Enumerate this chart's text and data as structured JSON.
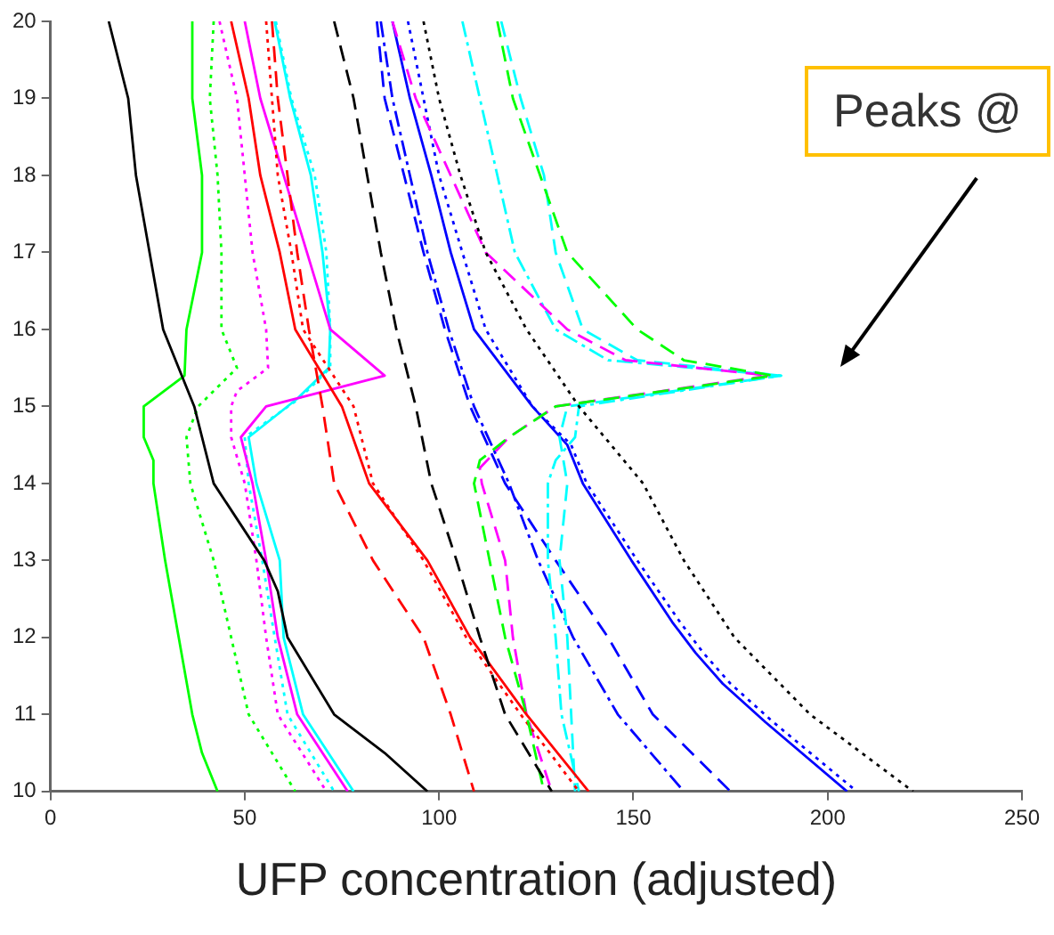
{
  "chart_data": {
    "type": "line",
    "xlabel": "UFP concentration (adjusted)",
    "xlim": [
      0,
      250
    ],
    "xticks": [
      0,
      50,
      100,
      150,
      200,
      250
    ],
    "ylim": [
      10,
      20
    ],
    "yticks": [
      10,
      11,
      12,
      13,
      14,
      15,
      16,
      17,
      18,
      19,
      20
    ],
    "grid": false,
    "marker": "none",
    "annotations": [
      "Peaks @"
    ],
    "series": [
      {
        "color": "#000000",
        "line_style": "solid",
        "x": [
          15,
          20,
          22,
          25.5,
          29,
          37,
          42,
          55,
          58.5,
          61,
          73,
          86,
          97
        ],
        "values": [
          20,
          19,
          18,
          17,
          16,
          15,
          14,
          13,
          12.6,
          12,
          11,
          10.5,
          10
        ]
      },
      {
        "color": "#000000",
        "line_style": "dashed",
        "x": [
          73,
          78,
          81.5,
          85,
          89,
          94,
          98,
          104.5,
          110.5,
          117,
          129
        ],
        "values": [
          20,
          19,
          18,
          17,
          16,
          15,
          14,
          13,
          12,
          11,
          10
        ]
      },
      {
        "color": "#000000",
        "line_style": "dotted",
        "x": [
          96,
          100,
          105.5,
          112,
          122.5,
          136,
          152.5,
          163,
          176,
          195.5,
          222
        ],
        "values": [
          20,
          19,
          18,
          17,
          16,
          15,
          14,
          13,
          12,
          11,
          10
        ]
      },
      {
        "color": "#00ff00",
        "line_style": "solid",
        "x": [
          36.5,
          36.5,
          39,
          39,
          35,
          34.5,
          24,
          24,
          26.5,
          26.5,
          29.5,
          33,
          36.5,
          39,
          43
        ],
        "values": [
          20,
          19,
          18,
          17,
          16,
          15.4,
          15,
          14.6,
          14.3,
          14,
          13,
          12,
          11,
          10.5,
          10
        ]
      },
      {
        "color": "#00ff00",
        "line_style": "dotted",
        "x": [
          42,
          41,
          43,
          44,
          44,
          48,
          38,
          35,
          36,
          42,
          46.5,
          51,
          63
        ],
        "values": [
          20,
          19,
          18,
          17,
          16,
          15.5,
          15,
          14.6,
          14,
          13,
          12,
          11,
          10
        ]
      },
      {
        "color": "#00ff00",
        "line_style": "dashed",
        "x": [
          115,
          119,
          126,
          133,
          151,
          163,
          186,
          130,
          118,
          110.5,
          109,
          113,
          117,
          122.5,
          127
        ],
        "values": [
          20,
          19,
          18,
          17,
          16,
          15.6,
          15.4,
          15,
          14.6,
          14.3,
          14,
          13,
          12,
          11,
          10
        ]
      },
      {
        "color": "#ff0000",
        "line_style": "solid",
        "x": [
          46.5,
          51,
          54,
          59,
          63,
          75,
          82,
          97,
          108,
          122.5,
          138.5
        ],
        "values": [
          20,
          19,
          18,
          17,
          16,
          15,
          14,
          13,
          12,
          11,
          10
        ]
      },
      {
        "color": "#ff0000",
        "line_style": "dashed",
        "x": [
          57,
          58.5,
          61,
          63.5,
          66.5,
          70,
          73,
          83,
          96,
          103,
          109
        ],
        "values": [
          20,
          19,
          18,
          17,
          16,
          15,
          14,
          13,
          12,
          11,
          10
        ]
      },
      {
        "color": "#ff0000",
        "line_style": "dotted",
        "x": [
          55.5,
          57,
          58.5,
          62,
          65,
          78,
          83,
          96,
          107,
          121,
          136
        ],
        "values": [
          20,
          19,
          18,
          17,
          16,
          15,
          14,
          13,
          12,
          11,
          10
        ]
      },
      {
        "color": "#ff00ff",
        "line_style": "solid",
        "x": [
          50,
          54,
          60,
          66,
          72,
          86,
          55.5,
          49,
          52,
          55.5,
          58.5,
          63.5,
          76.5
        ],
        "values": [
          20,
          19,
          18,
          17,
          16,
          15.4,
          15,
          14.6,
          14,
          13,
          12,
          11,
          10
        ]
      },
      {
        "color": "#ff00ff",
        "line_style": "dotted",
        "x": [
          43.5,
          48,
          50,
          52,
          55.5,
          56,
          48,
          46.5,
          46.5,
          50,
          53,
          55.5,
          58.5,
          71
        ],
        "values": [
          20,
          19,
          18,
          17,
          16,
          15.5,
          15.2,
          15,
          14.6,
          14,
          13,
          12,
          11,
          10
        ]
      },
      {
        "color": "#ff00ff",
        "line_style": "dashed",
        "x": [
          88,
          94,
          103,
          112,
          133,
          148,
          185,
          130,
          118,
          110.5,
          111,
          117,
          119,
          122.5,
          129
        ],
        "values": [
          20,
          19,
          18,
          17,
          16,
          15.6,
          15.4,
          15,
          14.6,
          14.2,
          14,
          13,
          12,
          11,
          10
        ]
      },
      {
        "color": "#00ffff",
        "line_style": "solid",
        "x": [
          57.7,
          61.7,
          67,
          70,
          72,
          71.6,
          63.5,
          51,
          53,
          59,
          60,
          65,
          78
        ],
        "values": [
          20,
          19,
          18,
          17,
          16,
          15.5,
          15.1,
          14.6,
          14,
          13,
          12,
          11,
          10
        ]
      },
      {
        "color": "#00ffff",
        "line_style": "dotted",
        "x": [
          58,
          62,
          68,
          71,
          72,
          72,
          64,
          50,
          51,
          54.5,
          57.7,
          61,
          73
        ],
        "values": [
          20,
          19,
          18,
          17,
          16,
          15.5,
          15.1,
          14.6,
          14,
          13,
          12,
          11,
          10
        ]
      },
      {
        "color": "#00ffff",
        "line_style": "dashed",
        "x": [
          116,
          121,
          127,
          130,
          137,
          151,
          188,
          133,
          131,
          133,
          131,
          133,
          134,
          135
        ],
        "values": [
          20,
          19,
          18,
          17,
          16,
          15.6,
          15.4,
          15,
          14.6,
          14,
          13,
          12,
          11,
          10
        ]
      },
      {
        "color": "#00ffff",
        "line_style": "dashdot",
        "x": [
          106,
          110.5,
          115,
          119.5,
          130,
          143.5,
          188,
          136,
          135,
          130,
          128,
          128,
          130,
          131.5,
          136
        ],
        "values": [
          20,
          19,
          18,
          17,
          16,
          15.6,
          15.4,
          15,
          14.6,
          14.3,
          14,
          13,
          12,
          11,
          10
        ]
      },
      {
        "color": "#0000ff",
        "line_style": "solid",
        "x": [
          88,
          92.5,
          98,
          103,
          109,
          124,
          133,
          137,
          149.5,
          160,
          166,
          173,
          184,
          205
        ],
        "values": [
          20,
          19,
          18,
          17,
          16,
          15,
          14.5,
          14,
          13,
          12.2,
          11.8,
          11.4,
          10.9,
          10
        ]
      },
      {
        "color": "#0000ff",
        "line_style": "dotted",
        "x": [
          92,
          96,
          100,
          106,
          112,
          124,
          134,
          138,
          151,
          162,
          168,
          175,
          186,
          207.5
        ],
        "values": [
          20,
          19,
          18,
          17,
          16,
          15,
          14.5,
          14,
          13,
          12.2,
          11.8,
          11.4,
          10.9,
          10
        ]
      },
      {
        "color": "#0000ff",
        "line_style": "dashed",
        "x": [
          84,
          86,
          91,
          96,
          101.5,
          108,
          117,
          130,
          143.5,
          155,
          175
        ],
        "values": [
          20,
          19,
          18,
          17,
          16,
          15,
          14,
          13,
          12,
          11,
          10
        ]
      },
      {
        "color": "#0000ff",
        "line_style": "dashdot",
        "x": [
          85,
          88,
          92.5,
          97,
          102.5,
          109,
          118,
          125.5,
          134.5,
          146,
          163
        ],
        "values": [
          20,
          19,
          18,
          17,
          16,
          15,
          14,
          13,
          12,
          11,
          10
        ]
      }
    ]
  }
}
